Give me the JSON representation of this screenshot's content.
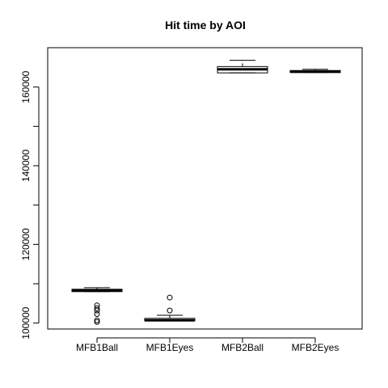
{
  "chart_data": {
    "type": "boxplot",
    "title": "Hit time by AOI",
    "xlabel": "",
    "ylabel": "",
    "categories": [
      "MFB1Ball",
      "MFB1Eyes",
      "MFB2Ball",
      "MFB2Eyes"
    ],
    "ylim": [
      98500,
      170000
    ],
    "y_ticks": [
      100000,
      120000,
      140000,
      160000
    ],
    "y_tick_labels": [
      "100000",
      "120000",
      "140000",
      "160000"
    ],
    "grid": false,
    "boxes": [
      {
        "name": "MFB1Ball",
        "whisker_low": 108000,
        "q1": 108000,
        "median": 108300,
        "q3": 108600,
        "whisker_high": 109000,
        "outliers": [
          104500,
          103800,
          103200,
          102300,
          100700,
          100300
        ]
      },
      {
        "name": "MFB1Eyes",
        "whisker_low": 100600,
        "q1": 100600,
        "median": 100700,
        "q3": 101200,
        "whisker_high": 102000,
        "outliers": [
          103200,
          106500
        ]
      },
      {
        "name": "MFB2Ball",
        "whisker_low": 163600,
        "q1": 163600,
        "median": 164500,
        "q3": 165200,
        "whisker_high": 166800,
        "outliers": []
      },
      {
        "name": "MFB2Eyes",
        "whisker_low": 163700,
        "q1": 163700,
        "median": 163900,
        "q3": 164200,
        "whisker_high": 164500,
        "outliers": []
      }
    ]
  }
}
